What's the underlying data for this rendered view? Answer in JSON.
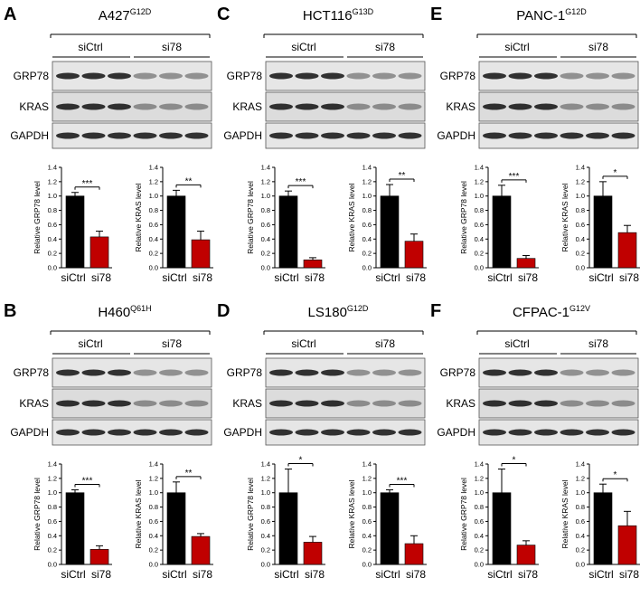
{
  "panels": [
    {
      "letter": "A",
      "cell_line": "A427",
      "mutation": "G12D",
      "groups": [
        "siCtrl",
        "si78"
      ],
      "blots": [
        "GRP78",
        "KRAS",
        "GAPDH"
      ]
    },
    {
      "letter": "B",
      "cell_line": "H460",
      "mutation": "Q61H",
      "groups": [
        "siCtrl",
        "si78"
      ],
      "blots": [
        "GRP78",
        "KRAS",
        "GAPDH"
      ]
    },
    {
      "letter": "C",
      "cell_line": "HCT116",
      "mutation": "G13D",
      "groups": [
        "siCtrl",
        "si78"
      ],
      "blots": [
        "GRP78",
        "KRAS",
        "GAPDH"
      ]
    },
    {
      "letter": "D",
      "cell_line": "LS180",
      "mutation": "G12D",
      "groups": [
        "siCtrl",
        "si78"
      ],
      "blots": [
        "GRP78",
        "KRAS",
        "GAPDH"
      ]
    },
    {
      "letter": "E",
      "cell_line": "PANC-1",
      "mutation": "G12D",
      "groups": [
        "siCtrl",
        "si78"
      ],
      "blots": [
        "GRP78",
        "KRAS",
        "GAPDH"
      ]
    },
    {
      "letter": "F",
      "cell_line": "CFPAC-1",
      "mutation": "G12V",
      "groups": [
        "siCtrl",
        "si78"
      ],
      "blots": [
        "GRP78",
        "KRAS",
        "GAPDH"
      ]
    }
  ],
  "chart_data": [
    {
      "type": "bar",
      "y_label": "Relative GRP78 level",
      "categories": [
        "siCtrl",
        "si78"
      ],
      "values": [
        1.0,
        0.43
      ],
      "errors": [
        0.05,
        0.08
      ],
      "colors": [
        "#000000",
        "#c00000"
      ],
      "annotation": "***",
      "ylim": [
        0,
        1.4
      ],
      "yticks": [
        {
          "value": 0,
          "label": "0.0"
        },
        {
          "value": 0.2,
          "label": "0.2"
        },
        {
          "value": 0.4,
          "label": "0.4"
        },
        {
          "value": 0.6,
          "label": "0.6"
        },
        {
          "value": 0.8,
          "label": "0.8"
        },
        {
          "value": 1,
          "label": "1.0"
        },
        {
          "value": 1.2,
          "label": "1.2"
        },
        {
          "value": 1.4,
          "label": "1.4"
        }
      ]
    },
    {
      "type": "bar",
      "y_label": "Relative KRAS level",
      "categories": [
        "siCtrl",
        "si78"
      ],
      "values": [
        1.0,
        0.39
      ],
      "errors": [
        0.08,
        0.12
      ],
      "colors": [
        "#000000",
        "#c00000"
      ],
      "annotation": "**",
      "ylim": [
        0,
        1.4
      ],
      "yticks": [
        {
          "value": 0,
          "label": "0.0"
        },
        {
          "value": 0.2,
          "label": "0.2"
        },
        {
          "value": 0.4,
          "label": "0.4"
        },
        {
          "value": 0.6,
          "label": "0.6"
        },
        {
          "value": 0.8,
          "label": "0.8"
        },
        {
          "value": 1,
          "label": "1.0"
        },
        {
          "value": 1.2,
          "label": "1.2"
        },
        {
          "value": 1.4,
          "label": "1.4"
        }
      ]
    },
    {
      "type": "bar",
      "y_label": "Relative GRP78 level",
      "categories": [
        "siCtrl",
        "si78"
      ],
      "values": [
        1.0,
        0.21
      ],
      "errors": [
        0.04,
        0.05
      ],
      "colors": [
        "#000000",
        "#c00000"
      ],
      "annotation": "***",
      "ylim": [
        0,
        1.4
      ],
      "yticks": [
        {
          "value": 0,
          "label": "0.0"
        },
        {
          "value": 0.2,
          "label": "0.2"
        },
        {
          "value": 0.4,
          "label": "0.4"
        },
        {
          "value": 0.6,
          "label": "0.6"
        },
        {
          "value": 0.8,
          "label": "0.8"
        },
        {
          "value": 1,
          "label": "1.0"
        },
        {
          "value": 1.2,
          "label": "1.2"
        },
        {
          "value": 1.4,
          "label": "1.4"
        }
      ]
    },
    {
      "type": "bar",
      "y_label": "Relative KRAS level",
      "categories": [
        "siCtrl",
        "si78"
      ],
      "values": [
        1.0,
        0.39
      ],
      "errors": [
        0.15,
        0.04
      ],
      "colors": [
        "#000000",
        "#c00000"
      ],
      "annotation": "**",
      "ylim": [
        0,
        1.4
      ],
      "yticks": [
        {
          "value": 0,
          "label": "0.0"
        },
        {
          "value": 0.2,
          "label": "0.2"
        },
        {
          "value": 0.4,
          "label": "0.4"
        },
        {
          "value": 0.6,
          "label": "0.6"
        },
        {
          "value": 0.8,
          "label": "0.8"
        },
        {
          "value": 1,
          "label": "1.0"
        },
        {
          "value": 1.2,
          "label": "1.2"
        },
        {
          "value": 1.4,
          "label": "1.4"
        }
      ]
    },
    {
      "type": "bar",
      "y_label": "Relative GRP78 level",
      "categories": [
        "siCtrl",
        "si78"
      ],
      "values": [
        1.0,
        0.11
      ],
      "errors": [
        0.07,
        0.03
      ],
      "colors": [
        "#000000",
        "#c00000"
      ],
      "annotation": "***",
      "ylim": [
        0,
        1.4
      ],
      "yticks": [
        {
          "value": 0,
          "label": "0.0"
        },
        {
          "value": 0.2,
          "label": "0.2"
        },
        {
          "value": 0.4,
          "label": "0.4"
        },
        {
          "value": 0.6,
          "label": "0.6"
        },
        {
          "value": 0.8,
          "label": "0.8"
        },
        {
          "value": 1,
          "label": "1.0"
        },
        {
          "value": 1.2,
          "label": "1.2"
        },
        {
          "value": 1.4,
          "label": "1.4"
        }
      ]
    },
    {
      "type": "bar",
      "y_label": "Relative KRAS level",
      "categories": [
        "siCtrl",
        "si78"
      ],
      "values": [
        1.0,
        0.37
      ],
      "errors": [
        0.16,
        0.1
      ],
      "colors": [
        "#000000",
        "#c00000"
      ],
      "annotation": "**",
      "ylim": [
        0,
        1.4
      ],
      "yticks": [
        {
          "value": 0,
          "label": "0.0"
        },
        {
          "value": 0.2,
          "label": "0.2"
        },
        {
          "value": 0.4,
          "label": "0.4"
        },
        {
          "value": 0.6,
          "label": "0.6"
        },
        {
          "value": 0.8,
          "label": "0.8"
        },
        {
          "value": 1,
          "label": "1.0"
        },
        {
          "value": 1.2,
          "label": "1.2"
        },
        {
          "value": 1.4,
          "label": "1.4"
        }
      ]
    },
    {
      "type": "bar",
      "y_label": "Relative GRP78 level",
      "categories": [
        "siCtrl",
        "si78"
      ],
      "values": [
        1.0,
        0.31
      ],
      "errors": [
        0.33,
        0.08
      ],
      "colors": [
        "#000000",
        "#c00000"
      ],
      "annotation": "*",
      "ylim": [
        0,
        1.4
      ],
      "yticks": [
        {
          "value": 0,
          "label": "0.0"
        },
        {
          "value": 0.2,
          "label": "0.2"
        },
        {
          "value": 0.4,
          "label": "0.4"
        },
        {
          "value": 0.6,
          "label": "0.6"
        },
        {
          "value": 0.8,
          "label": "0.8"
        },
        {
          "value": 1,
          "label": "1.0"
        },
        {
          "value": 1.2,
          "label": "1.2"
        },
        {
          "value": 1.4,
          "label": "1.4"
        }
      ]
    },
    {
      "type": "bar",
      "y_label": "Relative KRAS level",
      "categories": [
        "siCtrl",
        "si78"
      ],
      "values": [
        1.0,
        0.29
      ],
      "errors": [
        0.04,
        0.11
      ],
      "colors": [
        "#000000",
        "#c00000"
      ],
      "annotation": "***",
      "ylim": [
        0,
        1.4
      ],
      "yticks": [
        {
          "value": 0,
          "label": "0.0"
        },
        {
          "value": 0.2,
          "label": "0.2"
        },
        {
          "value": 0.4,
          "label": "0.4"
        },
        {
          "value": 0.6,
          "label": "0.6"
        },
        {
          "value": 0.8,
          "label": "0.8"
        },
        {
          "value": 1,
          "label": "1.0"
        },
        {
          "value": 1.2,
          "label": "1.2"
        },
        {
          "value": 1.4,
          "label": "1.4"
        }
      ]
    },
    {
      "type": "bar",
      "y_label": "Relative GRP78 level",
      "categories": [
        "siCtrl",
        "si78"
      ],
      "values": [
        1.0,
        0.13
      ],
      "errors": [
        0.15,
        0.04
      ],
      "colors": [
        "#000000",
        "#c00000"
      ],
      "annotation": "***",
      "ylim": [
        0,
        1.4
      ],
      "yticks": [
        {
          "value": 0,
          "label": "0.0"
        },
        {
          "value": 0.2,
          "label": "0.2"
        },
        {
          "value": 0.4,
          "label": "0.4"
        },
        {
          "value": 0.6,
          "label": "0.6"
        },
        {
          "value": 0.8,
          "label": "0.8"
        },
        {
          "value": 1,
          "label": "1.0"
        },
        {
          "value": 1.2,
          "label": "1.2"
        },
        {
          "value": 1.4,
          "label": "1.4"
        }
      ]
    },
    {
      "type": "bar",
      "y_label": "Relative KRAS level",
      "categories": [
        "siCtrl",
        "si78"
      ],
      "values": [
        1.0,
        0.49
      ],
      "errors": [
        0.2,
        0.1
      ],
      "colors": [
        "#000000",
        "#c00000"
      ],
      "annotation": "*",
      "ylim": [
        0,
        1.4
      ],
      "yticks": [
        {
          "value": 0,
          "label": "0.0"
        },
        {
          "value": 0.2,
          "label": "0.2"
        },
        {
          "value": 0.4,
          "label": "0.4"
        },
        {
          "value": 0.6,
          "label": "0.6"
        },
        {
          "value": 0.8,
          "label": "0.8"
        },
        {
          "value": 1,
          "label": "1.0"
        },
        {
          "value": 1.2,
          "label": "1.2"
        },
        {
          "value": 1.4,
          "label": "1.4"
        }
      ]
    },
    {
      "type": "bar",
      "y_label": "Relative GRP78 level",
      "categories": [
        "siCtrl",
        "si78"
      ],
      "values": [
        1.0,
        0.27
      ],
      "errors": [
        0.33,
        0.06
      ],
      "colors": [
        "#000000",
        "#c00000"
      ],
      "annotation": "*",
      "ylim": [
        0,
        1.4
      ],
      "yticks": [
        {
          "value": 0,
          "label": "0.0"
        },
        {
          "value": 0.2,
          "label": "0.2"
        },
        {
          "value": 0.4,
          "label": "0.4"
        },
        {
          "value": 0.6,
          "label": "0.6"
        },
        {
          "value": 0.8,
          "label": "0.8"
        },
        {
          "value": 1,
          "label": "1.0"
        },
        {
          "value": 1.2,
          "label": "1.2"
        },
        {
          "value": 1.4,
          "label": "1.4"
        }
      ]
    },
    {
      "type": "bar",
      "y_label": "Relative KRAS level",
      "categories": [
        "siCtrl",
        "si78"
      ],
      "values": [
        1.0,
        0.54
      ],
      "errors": [
        0.12,
        0.2
      ],
      "colors": [
        "#000000",
        "#c00000"
      ],
      "annotation": "*",
      "ylim": [
        0,
        1.4
      ],
      "yticks": [
        {
          "value": 0,
          "label": "0.0"
        },
        {
          "value": 0.2,
          "label": "0.2"
        },
        {
          "value": 0.4,
          "label": "0.4"
        },
        {
          "value": 0.6,
          "label": "0.6"
        },
        {
          "value": 0.8,
          "label": "0.8"
        },
        {
          "value": 1,
          "label": "1.0"
        },
        {
          "value": 1.2,
          "label": "1.2"
        },
        {
          "value": 1.4,
          "label": "1.4"
        }
      ]
    }
  ]
}
